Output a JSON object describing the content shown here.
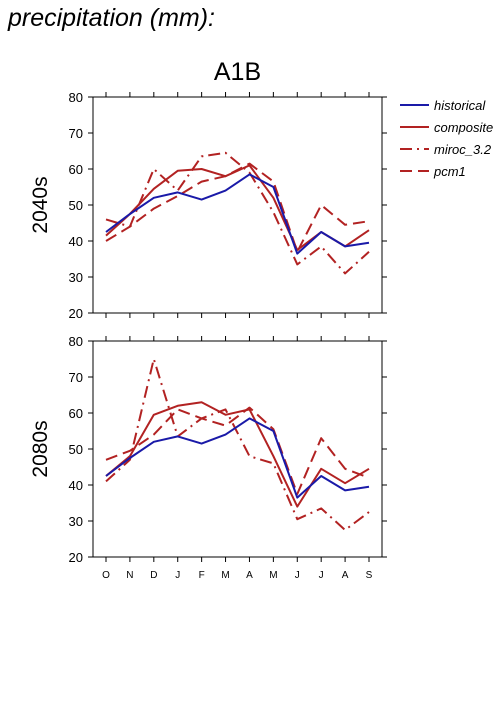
{
  "page_title": "precipitation (mm):",
  "chart_data": [
    {
      "type": "line",
      "title": "A1B",
      "ylabel": "2040s",
      "xlabel": "",
      "categories": [
        "O",
        "N",
        "D",
        "J",
        "F",
        "M",
        "A",
        "M",
        "J",
        "J",
        "A",
        "S"
      ],
      "ylim": [
        20,
        80
      ],
      "yticks": [
        20,
        30,
        40,
        50,
        60,
        70,
        80
      ],
      "series": [
        {
          "name": "historical",
          "color": "#1a1aa8",
          "style": "solid",
          "values": [
            42.5,
            47.5,
            52,
            53.5,
            51.5,
            54,
            58.5,
            55,
            36.5,
            42.5,
            38.5,
            39.5
          ]
        },
        {
          "name": "composite",
          "color": "#b22222",
          "style": "solid",
          "values": [
            41.5,
            47.5,
            54.5,
            59.5,
            60,
            58,
            61,
            52,
            37.5,
            42.5,
            38.5,
            43
          ]
        },
        {
          "name": "miroc_3.2",
          "color": "#b22222",
          "style": "dashdot",
          "values": [
            46,
            44,
            60,
            54,
            63.5,
            64.5,
            59,
            48,
            33.5,
            38.5,
            31,
            37
          ]
        },
        {
          "name": "pcm1",
          "color": "#b22222",
          "style": "dashed",
          "values": [
            40,
            44,
            49,
            52.5,
            56.5,
            58,
            61.5,
            56.5,
            37,
            50,
            44.5,
            45.5
          ]
        }
      ]
    },
    {
      "type": "line",
      "title": "",
      "ylabel": "2080s",
      "xlabel": "",
      "categories": [
        "O",
        "N",
        "D",
        "J",
        "F",
        "M",
        "A",
        "M",
        "J",
        "J",
        "A",
        "S"
      ],
      "ylim": [
        20,
        80
      ],
      "yticks": [
        20,
        30,
        40,
        50,
        60,
        70,
        80
      ],
      "series": [
        {
          "name": "historical",
          "color": "#1a1aa8",
          "style": "solid",
          "values": [
            42.5,
            47.5,
            52,
            53.5,
            51.5,
            54,
            58.5,
            55,
            36.5,
            42.5,
            38.5,
            39.5
          ]
        },
        {
          "name": "composite",
          "color": "#b22222",
          "style": "solid",
          "values": [
            42.5,
            48,
            59.5,
            62,
            63,
            59.5,
            61,
            48,
            34,
            44.5,
            40.5,
            44.5
          ]
        },
        {
          "name": "miroc_3.2",
          "color": "#b22222",
          "style": "dashdot",
          "values": [
            41,
            47,
            75,
            53.5,
            58.5,
            61,
            48,
            46,
            30.5,
            33.5,
            27.5,
            32.5
          ]
        },
        {
          "name": "pcm1",
          "color": "#b22222",
          "style": "dashed",
          "values": [
            47,
            49.5,
            54,
            61,
            58.5,
            56.5,
            61.5,
            55.5,
            37.5,
            53,
            44.5,
            42
          ]
        }
      ]
    }
  ],
  "legend": {
    "placement": "top-right",
    "items": [
      {
        "label": "historical",
        "color": "#1a1aa8",
        "style": "solid"
      },
      {
        "label": "composite",
        "color": "#b22222",
        "style": "solid"
      },
      {
        "label": "miroc_3.2",
        "color": "#b22222",
        "style": "dashdot"
      },
      {
        "label": "pcm1",
        "color": "#b22222",
        "style": "dashed"
      }
    ]
  }
}
